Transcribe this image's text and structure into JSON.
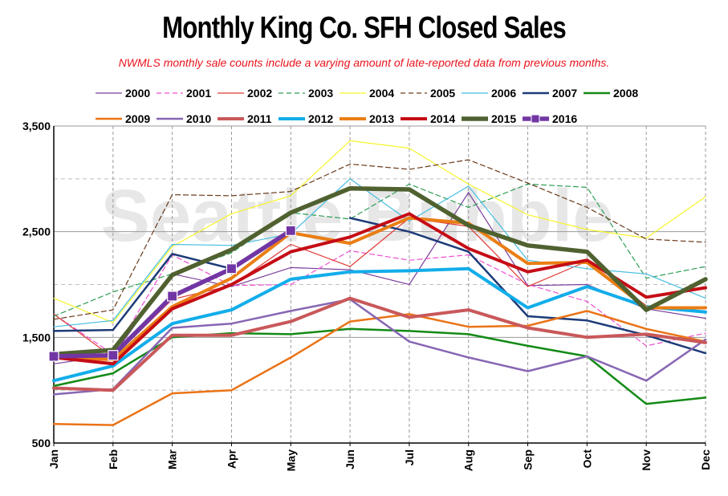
{
  "chart_data": {
    "type": "line",
    "title": "Monthly King Co. SFH Closed Sales",
    "subtitle": "NWMLS monthly sale counts include a varying amount of late-reported  data from previous months.",
    "watermark": "Seattle Bubble",
    "categories": [
      "Jan",
      "Feb",
      "Mar",
      "Apr",
      "May",
      "Jun",
      "Jul",
      "Aug",
      "Sep",
      "Oct",
      "Nov",
      "Dec"
    ],
    "ylim": [
      500,
      3500
    ],
    "yticks": [
      "500",
      "1,500",
      "2,500",
      "3,500"
    ],
    "ytick_values": [
      500,
      1500,
      2500,
      3500
    ],
    "grid": true,
    "legend_position": "top",
    "series": [
      {
        "name": "2000",
        "color": "#7b3f9a",
        "style": "solid",
        "weight": "thin",
        "values": [
          1250,
          1330,
          2100,
          1980,
          2160,
          2140,
          2000,
          2870,
          1990,
          2000,
          1770,
          1680
        ]
      },
      {
        "name": "2001",
        "color": "#ee4fd1",
        "style": "dashed",
        "weight": "thin",
        "values": [
          1720,
          1340,
          2280,
          1990,
          2000,
          2320,
          2230,
          2280,
          2000,
          1840,
          1420,
          1540
        ]
      },
      {
        "name": "2002",
        "color": "#dd3b36",
        "style": "solid",
        "weight": "thin",
        "values": [
          1720,
          1310,
          1860,
          1990,
          2380,
          2170,
          2630,
          2550,
          1980,
          2220,
          1800,
          1740
        ]
      },
      {
        "name": "2003",
        "color": "#2e9e55",
        "style": "dashed",
        "weight": "thin",
        "values": [
          1700,
          1930,
          2100,
          2300,
          2680,
          2620,
          2950,
          2730,
          2950,
          2920,
          2060,
          2170
        ]
      },
      {
        "name": "2004",
        "color": "#f5f52a",
        "style": "solid",
        "weight": "thin",
        "values": [
          1870,
          1640,
          2360,
          2670,
          2840,
          3360,
          3290,
          2950,
          2660,
          2520,
          2440,
          2830
        ]
      },
      {
        "name": "2005",
        "color": "#6b3a1c",
        "style": "dashed",
        "weight": "thin",
        "values": [
          1670,
          1760,
          2850,
          2840,
          2880,
          3140,
          3090,
          3180,
          2960,
          2730,
          2430,
          2400
        ]
      },
      {
        "name": "2006",
        "color": "#45bde0",
        "style": "solid",
        "weight": "thin",
        "values": [
          1600,
          1660,
          2380,
          2370,
          2480,
          3000,
          2600,
          2930,
          2230,
          2150,
          2100,
          1870
        ]
      },
      {
        "name": "2007",
        "color": "#1d3b78",
        "style": "solid",
        "weight": "medium",
        "values": [
          1560,
          1570,
          2290,
          2150,
          null,
          2630,
          2500,
          2310,
          1700,
          1660,
          1520,
          1350
        ]
      },
      {
        "name": "2008",
        "color": "#148a16",
        "style": "solid",
        "weight": "medium",
        "values": [
          1040,
          1160,
          1500,
          1540,
          1530,
          1580,
          1560,
          1530,
          1420,
          1320,
          870,
          930
        ]
      },
      {
        "name": "2009",
        "color": "#ea7316",
        "style": "solid",
        "weight": "medium",
        "values": [
          680,
          670,
          970,
          1000,
          1310,
          1650,
          1720,
          1600,
          1610,
          1750,
          1580,
          1460
        ]
      },
      {
        "name": "2010",
        "color": "#8766b3",
        "style": "solid",
        "weight": "medium",
        "values": [
          960,
          1010,
          1590,
          1630,
          1750,
          1860,
          1460,
          1310,
          1180,
          1320,
          1090,
          1480
        ]
      },
      {
        "name": "2011",
        "color": "#c9585a",
        "style": "solid",
        "weight": "thick",
        "values": [
          1020,
          1000,
          1520,
          1520,
          1650,
          1870,
          1690,
          1760,
          1590,
          1500,
          1530,
          1450
        ]
      },
      {
        "name": "2012",
        "color": "#12adea",
        "style": "solid",
        "weight": "thick",
        "values": [
          1090,
          1230,
          1630,
          1760,
          2050,
          2120,
          2130,
          2150,
          1780,
          1980,
          1790,
          1740
        ]
      },
      {
        "name": "2013",
        "color": "#ea7e14",
        "style": "solid",
        "weight": "thick",
        "values": [
          1310,
          1290,
          1790,
          2060,
          2490,
          2390,
          2630,
          2580,
          2200,
          2210,
          1780,
          1780
        ]
      },
      {
        "name": "2014",
        "color": "#c50d15",
        "style": "solid",
        "weight": "thick",
        "values": [
          1310,
          1250,
          1770,
          2000,
          2310,
          2450,
          2670,
          2340,
          2120,
          2230,
          1880,
          1970
        ]
      },
      {
        "name": "2015",
        "color": "#506130",
        "style": "solid",
        "weight": "heavy",
        "values": [
          1340,
          1380,
          2090,
          2330,
          2680,
          2910,
          2900,
          2560,
          2370,
          2310,
          1760,
          2050
        ]
      },
      {
        "name": "2016",
        "color": "#7236a4",
        "style": "solid",
        "weight": "heavy",
        "marker": "square",
        "values": [
          1320,
          1330,
          1890,
          2150,
          2510,
          null,
          null,
          null,
          null,
          null,
          null,
          null
        ]
      }
    ]
  }
}
